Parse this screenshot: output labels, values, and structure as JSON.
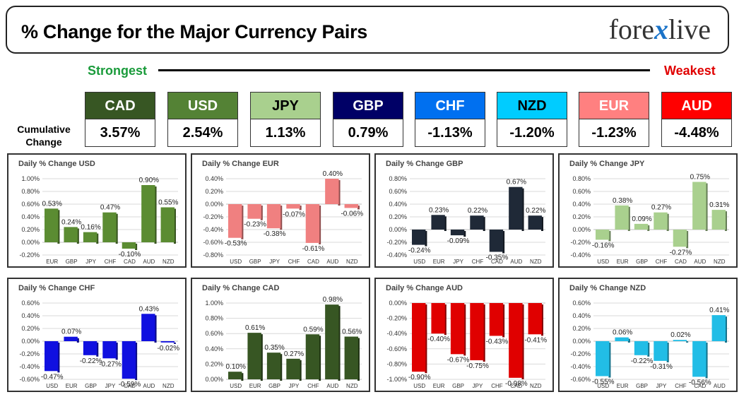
{
  "header": {
    "title": "% Change for the Major Currency Pairs",
    "logo_text": "forexlive",
    "logo_left": "fore",
    "logo_x": "x",
    "logo_right": "live"
  },
  "ranking": {
    "strongest_label": "Strongest",
    "weakest_label": "Weakest",
    "cumulative_label_1": "Cumulative",
    "cumulative_label_2": "Change"
  },
  "currencies": [
    {
      "code": "CAD",
      "value": "3.57%",
      "bg": "#375623",
      "fg": "#ffffff"
    },
    {
      "code": "USD",
      "value": "2.54%",
      "bg": "#548235",
      "fg": "#ffffff"
    },
    {
      "code": "JPY",
      "value": "1.13%",
      "bg": "#a9d08e",
      "fg": "#000000"
    },
    {
      "code": "GBP",
      "value": "0.79%",
      "bg": "#000066",
      "fg": "#ffffff"
    },
    {
      "code": "CHF",
      "value": "-1.13%",
      "bg": "#0070f0",
      "fg": "#ffffff"
    },
    {
      "code": "NZD",
      "value": "-1.20%",
      "bg": "#00ccff",
      "fg": "#000000"
    },
    {
      "code": "EUR",
      "value": "-1.23%",
      "bg": "#ff8080",
      "fg": "#ffffff"
    },
    {
      "code": "AUD",
      "value": "-4.48%",
      "bg": "#ff0000",
      "fg": "#ffffff"
    }
  ],
  "chart_data": [
    {
      "type": "bar",
      "title": "Daily % Change USD",
      "categories": [
        "EUR",
        "GBP",
        "JPY",
        "CHF",
        "CAD",
        "AUD",
        "NZD"
      ],
      "values": [
        0.53,
        0.24,
        0.16,
        0.47,
        -0.1,
        0.9,
        0.55
      ],
      "labels": [
        "0.53%",
        "0.24%",
        "0.16%",
        "0.47%",
        "-0.10%",
        "0.90%",
        "0.55%"
      ],
      "ylim": [
        -0.2,
        1.0
      ],
      "ticks": [
        1.0,
        0.8,
        0.6,
        0.4,
        0.2,
        0.0,
        -0.2
      ],
      "tick_labels": [
        "1.00%",
        "0.80%",
        "0.60%",
        "0.40%",
        "0.20%",
        "0.00%",
        "-0.20%"
      ],
      "color": "#5b8c32"
    },
    {
      "type": "bar",
      "title": "Daily % Change EUR",
      "categories": [
        "USD",
        "GBP",
        "JPY",
        "CHF",
        "CAD",
        "AUD",
        "NZD"
      ],
      "values": [
        -0.53,
        -0.23,
        -0.38,
        -0.07,
        -0.61,
        0.4,
        -0.06
      ],
      "labels": [
        "-0.53%",
        "-0.23%",
        "-0.38%",
        "-0.07%",
        "-0.61%",
        "0.40%",
        "-0.06%"
      ],
      "ylim": [
        -0.8,
        0.4
      ],
      "ticks": [
        0.4,
        0.2,
        0.0,
        -0.2,
        -0.4,
        -0.6,
        -0.8
      ],
      "tick_labels": [
        "0.40%",
        "0.20%",
        "0.00%",
        "-0.20%",
        "-0.40%",
        "-0.60%",
        "-0.80%"
      ],
      "color": "#f08080"
    },
    {
      "type": "bar",
      "title": "Daily % Change GBP",
      "categories": [
        "USD",
        "EUR",
        "JPY",
        "CHF",
        "CAD",
        "AUD",
        "NZD"
      ],
      "values": [
        -0.24,
        0.23,
        -0.09,
        0.22,
        -0.35,
        0.67,
        0.22
      ],
      "labels": [
        "-0.24%",
        "0.23%",
        "-0.09%",
        "0.22%",
        "-0.35%",
        "0.67%",
        "0.22%"
      ],
      "ylim": [
        -0.4,
        0.8
      ],
      "ticks": [
        0.8,
        0.6,
        0.4,
        0.2,
        0.0,
        -0.2,
        -0.4
      ],
      "tick_labels": [
        "0.80%",
        "0.60%",
        "0.40%",
        "0.20%",
        "0.00%",
        "-0.20%",
        "-0.40%"
      ],
      "color": "#1f2937"
    },
    {
      "type": "bar",
      "title": "Daily % Change JPY",
      "categories": [
        "USD",
        "EUR",
        "GBP",
        "CHF",
        "CAD",
        "AUD",
        "NZD"
      ],
      "values": [
        -0.16,
        0.38,
        0.09,
        0.27,
        -0.27,
        0.75,
        0.31
      ],
      "labels": [
        "-0.16%",
        "0.38%",
        "0.09%",
        "0.27%",
        "-0.27%",
        "0.75%",
        "0.31%"
      ],
      "ylim": [
        -0.4,
        0.8
      ],
      "ticks": [
        0.8,
        0.6,
        0.4,
        0.2,
        0.0,
        -0.2,
        -0.4
      ],
      "tick_labels": [
        "0.80%",
        "0.60%",
        "0.40%",
        "0.20%",
        "0.00%",
        "-0.20%",
        "-0.40%"
      ],
      "color": "#a9d08e"
    },
    {
      "type": "bar",
      "title": "Daily % Change CHF",
      "categories": [
        "USD",
        "EUR",
        "GBP",
        "JPY",
        "CAD",
        "AUD",
        "NZD"
      ],
      "values": [
        -0.47,
        0.07,
        -0.22,
        -0.27,
        -0.59,
        0.43,
        -0.02
      ],
      "labels": [
        "-0.47%",
        "0.07%",
        "-0.22%",
        "-0.27%",
        "-0.59%",
        "0.43%",
        "-0.02%"
      ],
      "ylim": [
        -0.6,
        0.6
      ],
      "ticks": [
        0.6,
        0.4,
        0.2,
        0.0,
        -0.2,
        -0.4,
        -0.6
      ],
      "tick_labels": [
        "0.60%",
        "0.40%",
        "0.20%",
        "0.00%",
        "-0.20%",
        "-0.40%",
        "-0.60%"
      ],
      "color": "#1010e0"
    },
    {
      "type": "bar",
      "title": "Daily % Change CAD",
      "categories": [
        "USD",
        "EUR",
        "GBP",
        "JPY",
        "CHF",
        "AUD",
        "NZD"
      ],
      "values": [
        0.1,
        0.61,
        0.35,
        0.27,
        0.59,
        0.98,
        0.56
      ],
      "labels": [
        "0.10%",
        "0.61%",
        "0.35%",
        "0.27%",
        "0.59%",
        "0.98%",
        "0.56%"
      ],
      "ylim": [
        0.0,
        1.0
      ],
      "ticks": [
        1.0,
        0.8,
        0.6,
        0.4,
        0.2,
        0.0
      ],
      "tick_labels": [
        "1.00%",
        "0.80%",
        "0.60%",
        "0.40%",
        "0.20%",
        "0.00%"
      ],
      "color": "#375623"
    },
    {
      "type": "bar",
      "title": "Daily % Change AUD",
      "categories": [
        "USD",
        "EUR",
        "GBP",
        "JPY",
        "CHF",
        "CAD",
        "NZD"
      ],
      "values": [
        -0.9,
        -0.4,
        -0.67,
        -0.75,
        -0.43,
        -0.98,
        -0.41
      ],
      "labels": [
        "-0.90%",
        "-0.40%",
        "-0.67%",
        "-0.75%",
        "-0.43%",
        "-0.98%",
        "-0.41%"
      ],
      "ylim": [
        -1.0,
        0.0
      ],
      "ticks": [
        0.0,
        -0.2,
        -0.4,
        -0.6,
        -0.8,
        -1.0
      ],
      "tick_labels": [
        "0.00%",
        "-0.20%",
        "-0.40%",
        "-0.60%",
        "-0.80%",
        "-1.00%"
      ],
      "color": "#e00000"
    },
    {
      "type": "bar",
      "title": "Daily % Change NZD",
      "categories": [
        "USD",
        "EUR",
        "GBP",
        "JPY",
        "CHF",
        "CAD",
        "AUD"
      ],
      "values": [
        -0.55,
        0.06,
        -0.22,
        -0.31,
        0.02,
        -0.56,
        0.41
      ],
      "labels": [
        "-0.55%",
        "0.06%",
        "-0.22%",
        "-0.31%",
        "0.02%",
        "-0.56%",
        "0.41%"
      ],
      "ylim": [
        -0.6,
        0.6
      ],
      "ticks": [
        0.6,
        0.4,
        0.2,
        0.0,
        -0.2,
        -0.4,
        -0.6
      ],
      "tick_labels": [
        "0.60%",
        "0.40%",
        "0.20%",
        "0.00%",
        "-0.20%",
        "-0.40%",
        "-0.60%"
      ],
      "color": "#22bde6"
    }
  ]
}
